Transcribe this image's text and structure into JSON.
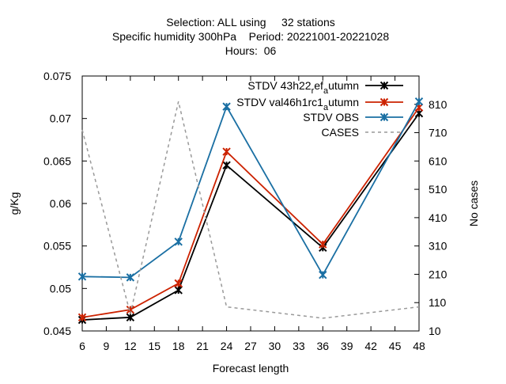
{
  "chart_data": {
    "type": "line",
    "title_lines": [
      "Selection: ALL using     32 stations",
      "Specific humidity 300hPa    Period: 20221001-20221028",
      "Hours:  06"
    ],
    "xlabel": "Forecast length",
    "ylabel": "g/Kg",
    "y2label": "No cases",
    "x": [
      6,
      12,
      18,
      24,
      36,
      48
    ],
    "xticks": [
      6,
      9,
      12,
      15,
      18,
      21,
      24,
      27,
      30,
      33,
      36,
      39,
      42,
      45,
      48
    ],
    "xlim": [
      6,
      48
    ],
    "ylim": [
      0.045,
      0.075
    ],
    "yticks": [
      0.045,
      0.05,
      0.055,
      0.06,
      0.065,
      0.07,
      0.075
    ],
    "ytick_labels": [
      "0.045",
      "0.05",
      "0.055",
      "0.06",
      "0.065",
      "0.07",
      "0.075"
    ],
    "y2lim": [
      10,
      910
    ],
    "y2ticks": [
      10,
      110,
      210,
      310,
      410,
      510,
      610,
      710,
      810
    ],
    "legend_position": "top-right",
    "grid": false,
    "series": [
      {
        "name_parts": [
          [
            "STDV 43h22",
            false
          ],
          [
            "r",
            true
          ],
          [
            "ef",
            false
          ],
          [
            "a",
            true
          ],
          [
            "utumn",
            false
          ]
        ],
        "axis": "y1",
        "color": "#000000",
        "dash": "solid",
        "marker": "x",
        "values": [
          0.0463,
          0.0466,
          0.0498,
          0.0645,
          0.0548,
          0.0706
        ]
      },
      {
        "name_parts": [
          [
            "STDV val46h1rc1",
            false
          ],
          [
            "a",
            true
          ],
          [
            "utumn",
            false
          ]
        ],
        "axis": "y1",
        "color": "#cc2200",
        "dash": "solid",
        "marker": "x",
        "values": [
          0.0466,
          0.0475,
          0.0506,
          0.0661,
          0.0552,
          0.0713
        ]
      },
      {
        "name_parts": [
          [
            "STDV OBS",
            false
          ]
        ],
        "axis": "y1",
        "color": "#1a6fa3",
        "dash": "solid",
        "marker": "x",
        "values": [
          0.0514,
          0.0513,
          0.0555,
          0.0714,
          0.0516,
          0.072
        ]
      },
      {
        "name_parts": [
          [
            "CASES",
            false
          ]
        ],
        "axis": "y2",
        "color": "#999999",
        "dash": "dashed",
        "marker": "none",
        "values": [
          720,
          70,
          820,
          95,
          55,
          95
        ]
      }
    ]
  }
}
